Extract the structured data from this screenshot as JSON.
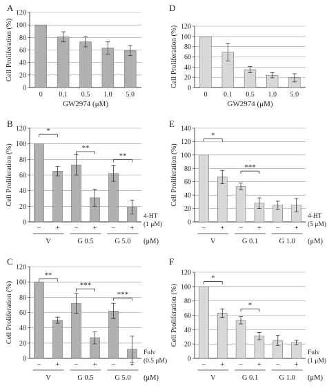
{
  "figure": {
    "panels": [
      {
        "letter": "A",
        "chart_data": {
          "type": "bar",
          "ylabel": "Cell Proliferation (%)",
          "xlabel": "GW2974 (μM)",
          "ylim": [
            0,
            120
          ],
          "yticks": [
            "0",
            "20",
            "40",
            "60",
            "80",
            "100",
            "120"
          ],
          "categories": [
            "0",
            "0.1",
            "0.5",
            "1.0",
            "5.0"
          ],
          "values": [
            100,
            81,
            73,
            63,
            59
          ],
          "errors": [
            0,
            8,
            8,
            10,
            8
          ],
          "bar_color": "#b0b0b0"
        }
      },
      {
        "letter": "D",
        "chart_data": {
          "type": "bar",
          "ylabel": "Cell Proliferation (%)",
          "xlabel": "GW2974 (μM)",
          "ylim": [
            0,
            120
          ],
          "yticks": [
            "0",
            "20",
            "40",
            "60",
            "80",
            "100",
            "120"
          ],
          "categories": [
            "0",
            "0.1",
            "0.5",
            "1.0",
            "5.0"
          ],
          "values": [
            100,
            69,
            35,
            24,
            19
          ],
          "errors": [
            0,
            17,
            6,
            5,
            8
          ],
          "bar_color": "#d8d8d8"
        }
      },
      {
        "letter": "B",
        "chart_data": {
          "type": "bar",
          "ylabel": "Cell Proliferation (%)",
          "ylim": [
            0,
            120
          ],
          "yticks": [
            "0",
            "20",
            "40",
            "60",
            "80",
            "100",
            "120"
          ],
          "values": [
            100,
            65,
            73,
            31,
            62,
            19
          ],
          "errors": [
            0,
            6,
            13,
            11,
            10,
            9
          ],
          "signs": [
            "−",
            "+",
            "−",
            "+",
            "−",
            "+"
          ],
          "groups": [
            "V",
            "G 0.5",
            "G 5.0"
          ],
          "treatment": [
            "4-HT",
            "(1 μM)"
          ],
          "unit": "(μM)",
          "significance": [
            {
              "from": 0,
              "to": 1,
              "label": "*",
              "y": 112
            },
            {
              "from": 2,
              "to": 3,
              "label": "**",
              "y": 90
            },
            {
              "from": 4,
              "to": 5,
              "label": "**",
              "y": 80
            }
          ],
          "bar_color": "#b0b0b0"
        }
      },
      {
        "letter": "E",
        "chart_data": {
          "type": "bar",
          "ylabel": "Cell Proliferation (%)",
          "ylim": [
            0,
            140
          ],
          "yticks": [
            "0",
            "20",
            "40",
            "60",
            "80",
            "100",
            "120",
            "140"
          ],
          "values": [
            100,
            67,
            53,
            28,
            25,
            25
          ],
          "errors": [
            0,
            10,
            5,
            8,
            6,
            10
          ],
          "signs": [
            "−",
            "+",
            "−",
            "+",
            "−",
            "+"
          ],
          "groups": [
            "V",
            "G 0.1",
            "G 1.0"
          ],
          "treatment": [
            "4-HT",
            "(5 μM)"
          ],
          "unit": "(μM)",
          "significance": [
            {
              "from": 0,
              "to": 1,
              "label": "*",
              "y": 124
            },
            {
              "from": 2,
              "to": 3,
              "label": "***",
              "y": 76
            }
          ],
          "bar_color": "#d8d8d8"
        }
      },
      {
        "letter": "C",
        "chart_data": {
          "type": "bar",
          "ylabel": "Cell Proliferation (%)",
          "ylim": [
            0,
            120
          ],
          "yticks": [
            "0",
            "20",
            "40",
            "60",
            "80",
            "100",
            "120"
          ],
          "values": [
            100,
            50,
            72,
            27,
            62,
            12
          ],
          "errors": [
            0,
            4,
            13,
            8,
            10,
            17
          ],
          "signs": [
            "−",
            "+",
            "−",
            "+",
            "−",
            "+"
          ],
          "groups": [
            "V",
            "G 0.5",
            "G 5.0"
          ],
          "treatment": [
            "Fulv",
            "(0.5 μM)"
          ],
          "unit": "(μM)",
          "significance": [
            {
              "from": 0,
              "to": 1,
              "label": "**",
              "y": 104
            },
            {
              "from": 2,
              "to": 3,
              "label": "***",
              "y": 91
            },
            {
              "from": 4,
              "to": 5,
              "label": "***",
              "y": 79
            }
          ],
          "bar_color": "#b0b0b0"
        }
      },
      {
        "letter": "F",
        "chart_data": {
          "type": "bar",
          "ylabel": "Cell Proliferation (%)",
          "ylim": [
            0,
            120
          ],
          "yticks": [
            "0",
            "20",
            "40",
            "60",
            "80",
            "100",
            "120"
          ],
          "values": [
            100,
            63,
            53,
            31,
            25,
            22
          ],
          "errors": [
            0,
            6,
            5,
            5,
            7,
            3
          ],
          "signs": [
            "−",
            "+",
            "−",
            "+",
            "−",
            "+"
          ],
          "groups": [
            "V",
            "G 0.1",
            "G 1.0"
          ],
          "treatment": [
            "Fulv",
            "(1 μM)"
          ],
          "unit": "(μM)",
          "significance": [
            {
              "from": 0,
              "to": 1,
              "label": "*",
              "y": 107
            },
            {
              "from": 2,
              "to": 3,
              "label": "*",
              "y": 69
            }
          ],
          "bar_color": "#d8d8d8"
        }
      }
    ]
  }
}
